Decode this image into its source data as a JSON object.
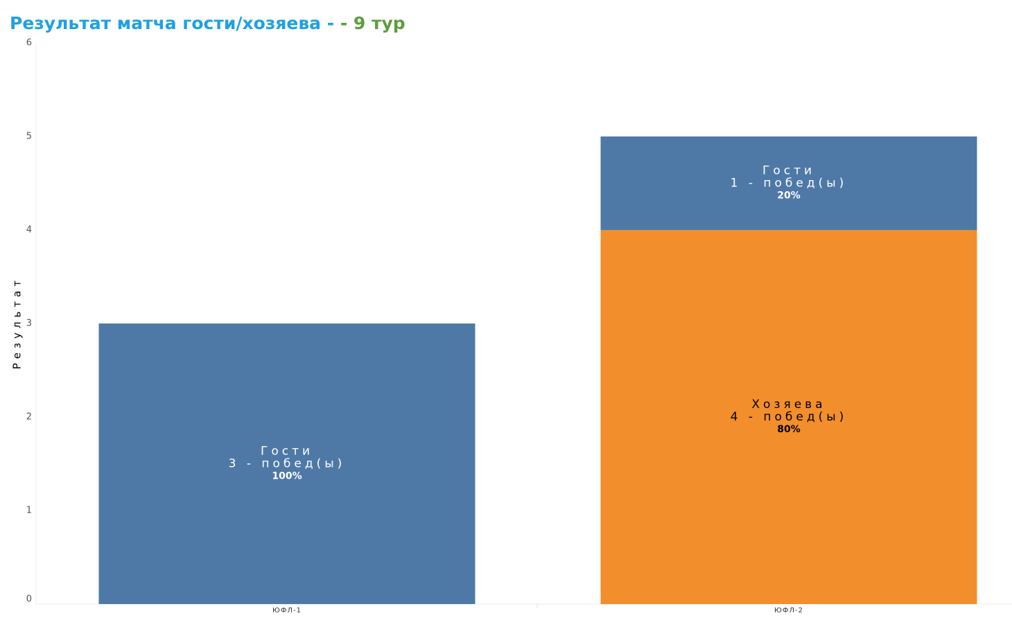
{
  "chart_data": {
    "type": "stacked-bar",
    "title": "Результат матча гости/хозяева - ",
    "subtitle": " - 9 тур",
    "y_label": "Результат",
    "categories": [
      "ЮФЛ-1",
      "ЮФЛ-2"
    ],
    "series": [
      {
        "name": "Хозяева",
        "color": "#f28e2b",
        "text_color": "#000000",
        "values": [
          null,
          4
        ],
        "value_labels": [
          null,
          "4 - побед(ы)"
        ],
        "share_labels": [
          null,
          "80%"
        ]
      },
      {
        "name": "Гости",
        "color": "#4e79a7",
        "text_color": "#ffffff",
        "values": [
          3,
          1
        ],
        "value_labels": [
          "3 - побед(ы)",
          "1 - побед(ы)"
        ],
        "share_labels": [
          "100%",
          "20%"
        ]
      }
    ],
    "ylim": [
      0,
      6
    ],
    "yticks": [
      0,
      1,
      2,
      3,
      4,
      5,
      6
    ]
  }
}
